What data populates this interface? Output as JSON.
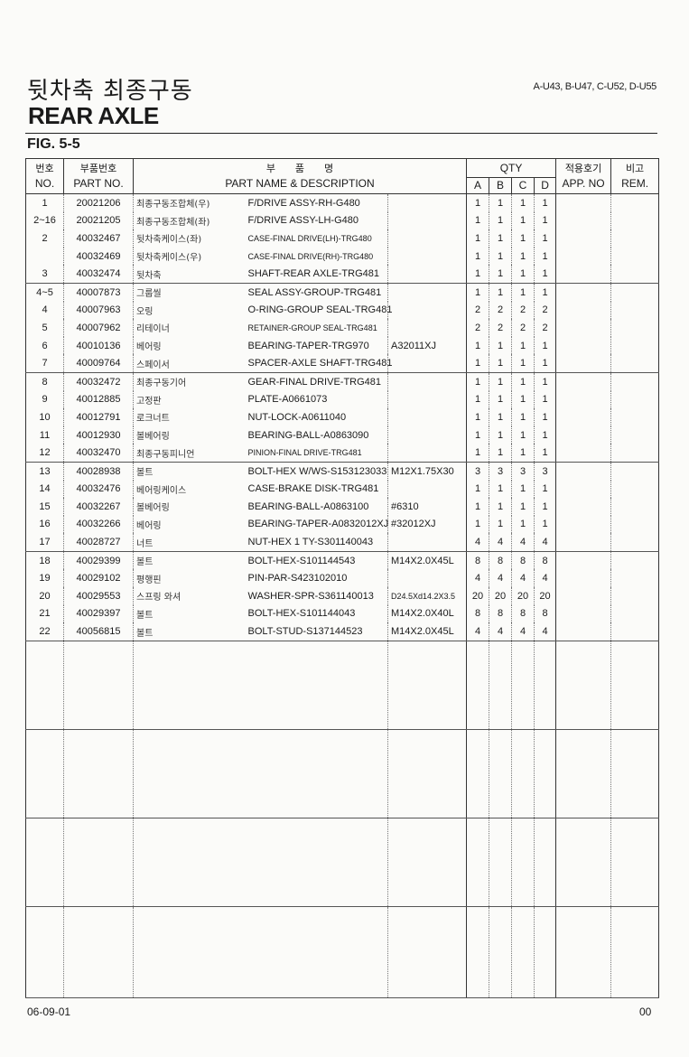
{
  "header": {
    "title_korean": "뒷차축 최종구동",
    "title_english": "REAR AXLE",
    "models": "A-U43, B-U47, C-U52, D-U55",
    "figure": "FIG. 5-5"
  },
  "table": {
    "headers": {
      "no_ko": "번호",
      "no_en": "NO.",
      "part_no_ko": "부품번호",
      "part_no_en": "PART NO.",
      "name_ko": "부　　품　　명",
      "name_en": "PART NAME & DESCRIPTION",
      "qty": "QTY",
      "a": "A",
      "b": "B",
      "c": "C",
      "d": "D",
      "app_ko": "적용호기",
      "app_en": "APP. NO",
      "rem_ko": "비고",
      "rem_en": "REM."
    },
    "rows": [
      {
        "no": "1",
        "part_no": "20021206",
        "name_ko": "최종구동조합체(우)",
        "name_en": "F/DRIVE ASSY-RH-G480",
        "spec": "",
        "qty": [
          "1",
          "1",
          "1",
          "1"
        ]
      },
      {
        "no": "2~16",
        "part_no": "20021205",
        "name_ko": "최종구동조합체(좌)",
        "name_en": "F/DRIVE ASSY-LH-G480",
        "spec": "",
        "qty": [
          "1",
          "1",
          "1",
          "1"
        ]
      },
      {
        "no": "2",
        "part_no": "40032467",
        "name_ko": "뒷차축케이스(좌)",
        "name_en": "CASE-FINAL DRIVE(LH)-TRG480",
        "spec": "",
        "qty": [
          "1",
          "1",
          "1",
          "1"
        ]
      },
      {
        "no": "",
        "part_no": "40032469",
        "name_ko": "뒷차축케이스(우)",
        "name_en": "CASE-FINAL DRIVE(RH)-TRG480",
        "spec": "",
        "qty": [
          "1",
          "1",
          "1",
          "1"
        ]
      },
      {
        "no": "3",
        "part_no": "40032474",
        "name_ko": "뒷차축",
        "name_en": "SHAFT-REAR AXLE-TRG481",
        "spec": "",
        "qty": [
          "1",
          "1",
          "1",
          "1"
        ]
      },
      {
        "no": "4~5",
        "part_no": "40007873",
        "name_ko": "그룹씰",
        "name_en": "SEAL ASSY-GROUP-TRG481",
        "spec": "",
        "qty": [
          "1",
          "1",
          "1",
          "1"
        ]
      },
      {
        "no": "4",
        "part_no": "40007963",
        "name_ko": "오링",
        "name_en": "O-RING-GROUP SEAL-TRG481",
        "spec": "",
        "qty": [
          "2",
          "2",
          "2",
          "2"
        ]
      },
      {
        "no": "5",
        "part_no": "40007962",
        "name_ko": "리테이너",
        "name_en": "RETAINER-GROUP SEAL-TRG481",
        "spec": "",
        "qty": [
          "2",
          "2",
          "2",
          "2"
        ]
      },
      {
        "no": "6",
        "part_no": "40010136",
        "name_ko": "베어링",
        "name_en": "BEARING-TAPER-TRG970",
        "spec": "A32011XJ",
        "qty": [
          "1",
          "1",
          "1",
          "1"
        ]
      },
      {
        "no": "7",
        "part_no": "40009764",
        "name_ko": "스페이서",
        "name_en": "SPACER-AXLE SHAFT-TRG481",
        "spec": "",
        "qty": [
          "1",
          "1",
          "1",
          "1"
        ]
      },
      {
        "no": "8",
        "part_no": "40032472",
        "name_ko": "최종구동기어",
        "name_en": "GEAR-FINAL DRIVE-TRG481",
        "spec": "",
        "qty": [
          "1",
          "1",
          "1",
          "1"
        ]
      },
      {
        "no": "9",
        "part_no": "40012885",
        "name_ko": "고정판",
        "name_en": "PLATE-A0661073",
        "spec": "",
        "qty": [
          "1",
          "1",
          "1",
          "1"
        ]
      },
      {
        "no": "10",
        "part_no": "40012791",
        "name_ko": "로크너트",
        "name_en": "NUT-LOCK-A0611040",
        "spec": "",
        "qty": [
          "1",
          "1",
          "1",
          "1"
        ]
      },
      {
        "no": "11",
        "part_no": "40012930",
        "name_ko": "볼베어링",
        "name_en": "BEARING-BALL-A0863090",
        "spec": "",
        "qty": [
          "1",
          "1",
          "1",
          "1"
        ]
      },
      {
        "no": "12",
        "part_no": "40032470",
        "name_ko": "최종구동피니언",
        "name_en": "PINION-FINAL DRIVE-TRG481",
        "spec": "",
        "qty": [
          "1",
          "1",
          "1",
          "1"
        ]
      },
      {
        "no": "13",
        "part_no": "40028938",
        "name_ko": "볼트",
        "name_en": "BOLT-HEX W/WS-S153123033",
        "spec": "M12X1.75X30",
        "qty": [
          "3",
          "3",
          "3",
          "3"
        ]
      },
      {
        "no": "14",
        "part_no": "40032476",
        "name_ko": "베어링케이스",
        "name_en": "CASE-BRAKE DISK-TRG481",
        "spec": "",
        "qty": [
          "1",
          "1",
          "1",
          "1"
        ]
      },
      {
        "no": "15",
        "part_no": "40032267",
        "name_ko": "볼베어링",
        "name_en": "BEARING-BALL-A0863100",
        "spec": "#6310",
        "qty": [
          "1",
          "1",
          "1",
          "1"
        ]
      },
      {
        "no": "16",
        "part_no": "40032266",
        "name_ko": "베어링",
        "name_en": "BEARING-TAPER-A0832012XJ",
        "spec": "#32012XJ",
        "qty": [
          "1",
          "1",
          "1",
          "1"
        ]
      },
      {
        "no": "17",
        "part_no": "40028727",
        "name_ko": "너트",
        "name_en": "NUT-HEX 1 TY-S301140043",
        "spec": "",
        "qty": [
          "4",
          "4",
          "4",
          "4"
        ]
      },
      {
        "no": "18",
        "part_no": "40029399",
        "name_ko": "볼트",
        "name_en": "BOLT-HEX-S101144543",
        "spec": "M14X2.0X45L",
        "qty": [
          "8",
          "8",
          "8",
          "8"
        ]
      },
      {
        "no": "19",
        "part_no": "40029102",
        "name_ko": "평행핀",
        "name_en": "PIN-PAR-S423102010",
        "spec": "",
        "qty": [
          "4",
          "4",
          "4",
          "4"
        ]
      },
      {
        "no": "20",
        "part_no": "40029553",
        "name_ko": "스프링 와셔",
        "name_en": "WASHER-SPR-S361140013",
        "spec": "D24.5Xd14.2X3.5",
        "qty": [
          "20",
          "20",
          "20",
          "20"
        ]
      },
      {
        "no": "21",
        "part_no": "40029397",
        "name_ko": "볼트",
        "name_en": "BOLT-HEX-S101144043",
        "spec": "M14X2.0X40L",
        "qty": [
          "8",
          "8",
          "8",
          "8"
        ]
      },
      {
        "no": "22",
        "part_no": "40056815",
        "name_ko": "볼트",
        "name_en": "BOLT-STUD-S137144523",
        "spec": "M14X2.0X45L",
        "qty": [
          "4",
          "4",
          "4",
          "4"
        ]
      }
    ]
  },
  "footer": {
    "date": "06-09-01",
    "page": "00"
  }
}
